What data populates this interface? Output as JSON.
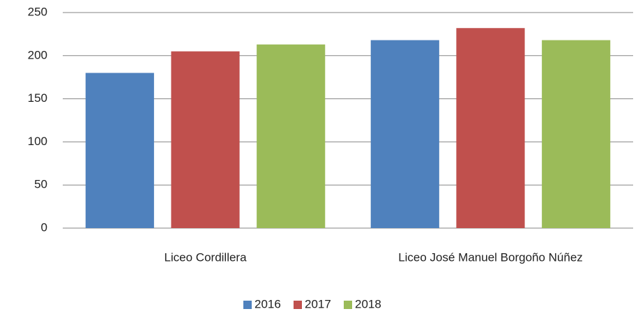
{
  "chart_data": {
    "type": "bar",
    "categories": [
      "Liceo Cordillera",
      "Liceo José Manuel Borgoño Núñez"
    ],
    "series": [
      {
        "name": "2016",
        "color": "#4f81bd",
        "values": [
          180,
          218
        ]
      },
      {
        "name": "2017",
        "color": "#c0504d",
        "values": [
          205,
          232
        ]
      },
      {
        "name": "2018",
        "color": "#9bbb59",
        "values": [
          213,
          218
        ]
      }
    ],
    "ylim": [
      0,
      250
    ],
    "yticks": [
      0,
      50,
      100,
      150,
      200,
      250
    ],
    "grid": true,
    "legend": "bottom"
  }
}
